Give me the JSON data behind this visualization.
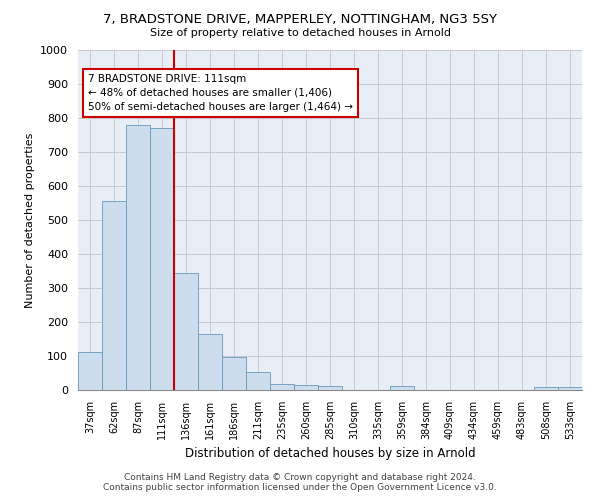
{
  "title": "7, BRADSTONE DRIVE, MAPPERLEY, NOTTINGHAM, NG3 5SY",
  "subtitle": "Size of property relative to detached houses in Arnold",
  "xlabel": "Distribution of detached houses by size in Arnold",
  "ylabel": "Number of detached properties",
  "bin_labels": [
    "37sqm",
    "62sqm",
    "87sqm",
    "111sqm",
    "136sqm",
    "161sqm",
    "186sqm",
    "211sqm",
    "235sqm",
    "260sqm",
    "285sqm",
    "310sqm",
    "335sqm",
    "359sqm",
    "384sqm",
    "409sqm",
    "434sqm",
    "459sqm",
    "483sqm",
    "508sqm",
    "533sqm"
  ],
  "bar_values": [
    113,
    557,
    779,
    770,
    343,
    165,
    98,
    53,
    18,
    14,
    12,
    0,
    0,
    11,
    0,
    0,
    0,
    0,
    0,
    8,
    8
  ],
  "bar_color": "#ccdded",
  "bar_edge_color": "#6699bb",
  "red_line_x": 3.5,
  "annotation_text": "7 BRADSTONE DRIVE: 111sqm\n← 48% of detached houses are smaller (1,406)\n50% of semi-detached houses are larger (1,464) →",
  "annotation_box_color": "#ffffff",
  "annotation_box_edge": "#cc0000",
  "red_line_color": "#cc0000",
  "ylim": [
    0,
    1000
  ],
  "yticks": [
    0,
    100,
    200,
    300,
    400,
    500,
    600,
    700,
    800,
    900,
    1000
  ],
  "footer_line1": "Contains HM Land Registry data © Crown copyright and database right 2024.",
  "footer_line2": "Contains public sector information licensed under the Open Government Licence v3.0.",
  "bg_color": "#ffffff",
  "axes_bg_color": "#e8eef5",
  "grid_color": "#c8c8d0"
}
